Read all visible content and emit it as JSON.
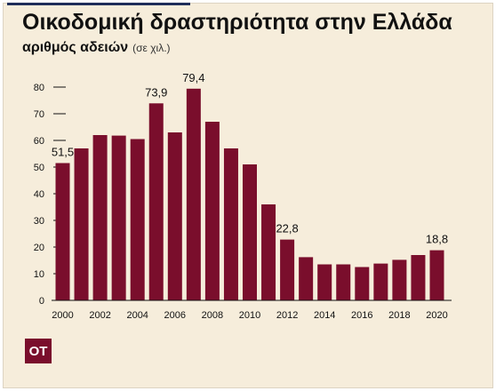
{
  "header": {
    "title": "Οικοδομική δραστηριότητα στην Ελλάδα",
    "subtitle": "αριθμός αδειών",
    "unit_note": "(σε χιλ.)"
  },
  "logo": {
    "text": "ΟΤ"
  },
  "colors": {
    "bar": "#7a0e2c",
    "background": "#f6eddb",
    "accent_rule": "#1f2e5a"
  },
  "chart_data": {
    "type": "bar",
    "title": "Οικοδομική δραστηριότητα στην Ελλάδα",
    "subtitle": "αριθμός αδειών (σε χιλ.)",
    "xlabel": "",
    "ylabel": "",
    "ylim": [
      0,
      80
    ],
    "yticks": [
      0,
      10,
      20,
      30,
      40,
      50,
      60,
      70,
      80
    ],
    "grid": false,
    "categories": [
      "2000",
      "2001",
      "2002",
      "2003",
      "2004",
      "2005",
      "2006",
      "2007",
      "2008",
      "2009",
      "2010",
      "2011",
      "2012",
      "2013",
      "2014",
      "2015",
      "2016",
      "2017",
      "2018",
      "2019",
      "2020"
    ],
    "x_tick_labels": [
      "2000",
      "2002",
      "2004",
      "2006",
      "2008",
      "2010",
      "2012",
      "2014",
      "2016",
      "2018",
      "2020"
    ],
    "values": [
      51.5,
      57,
      62,
      61.8,
      60.5,
      73.9,
      63,
      79.4,
      67,
      57,
      51,
      36,
      22.8,
      16.2,
      13.5,
      13.5,
      12.5,
      13.8,
      15.2,
      17,
      18.8
    ],
    "data_labels": [
      {
        "category": "2000",
        "text": "51,5"
      },
      {
        "category": "2005",
        "text": "73,9"
      },
      {
        "category": "2007",
        "text": "79,4"
      },
      {
        "category": "2012",
        "text": "22,8"
      },
      {
        "category": "2020",
        "text": "18,8"
      }
    ]
  }
}
